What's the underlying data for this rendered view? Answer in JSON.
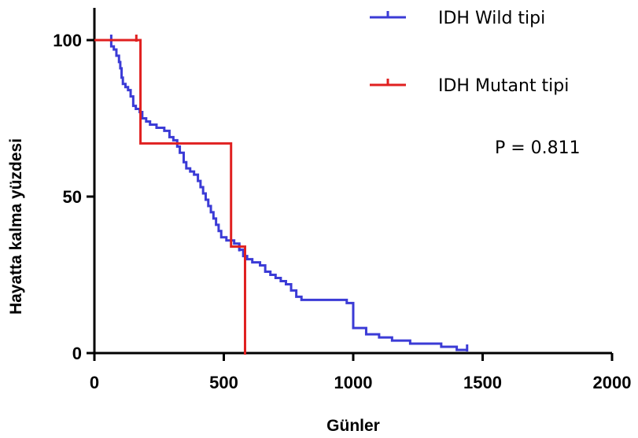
{
  "chart_data": {
    "type": "line",
    "subtype": "kaplan-meier",
    "xlabel": "Günler",
    "ylabel": "Hayatta kalma yüzdesi",
    "xlim": [
      0,
      2000
    ],
    "ylim": [
      0,
      100
    ],
    "x_ticks": [
      0,
      500,
      1000,
      1500,
      2000
    ],
    "y_ticks": [
      0,
      50,
      100
    ],
    "x_tick_labels": [
      "0",
      "500",
      "1000",
      "1500",
      "2000"
    ],
    "y_tick_labels": [
      "0",
      "50",
      "100"
    ],
    "grid": false,
    "legend_position": "top-right",
    "annotation": "P = 0.811",
    "series": [
      {
        "name": "IDH Wild tipi",
        "color": "#3b3bd6",
        "points": [
          [
            0,
            100
          ],
          [
            60,
            100
          ],
          [
            65,
            98
          ],
          [
            75,
            97
          ],
          [
            85,
            95
          ],
          [
            95,
            93
          ],
          [
            100,
            91
          ],
          [
            105,
            88
          ],
          [
            110,
            86
          ],
          [
            120,
            85
          ],
          [
            130,
            84
          ],
          [
            140,
            82
          ],
          [
            150,
            79
          ],
          [
            160,
            78
          ],
          [
            175,
            77
          ],
          [
            185,
            75
          ],
          [
            200,
            74
          ],
          [
            215,
            73
          ],
          [
            240,
            72
          ],
          [
            270,
            71
          ],
          [
            290,
            69
          ],
          [
            305,
            68
          ],
          [
            320,
            66
          ],
          [
            330,
            64
          ],
          [
            345,
            61
          ],
          [
            355,
            59
          ],
          [
            370,
            58
          ],
          [
            385,
            57
          ],
          [
            400,
            55
          ],
          [
            410,
            53
          ],
          [
            420,
            51
          ],
          [
            430,
            49
          ],
          [
            440,
            47
          ],
          [
            450,
            45
          ],
          [
            460,
            43
          ],
          [
            470,
            41
          ],
          [
            480,
            39
          ],
          [
            490,
            37
          ],
          [
            510,
            36
          ],
          [
            540,
            35
          ],
          [
            560,
            33
          ],
          [
            575,
            31
          ],
          [
            590,
            30
          ],
          [
            610,
            29
          ],
          [
            640,
            28
          ],
          [
            660,
            26
          ],
          [
            680,
            25
          ],
          [
            700,
            24
          ],
          [
            720,
            23
          ],
          [
            740,
            22
          ],
          [
            760,
            20
          ],
          [
            780,
            18
          ],
          [
            800,
            17
          ],
          [
            900,
            17
          ],
          [
            975,
            16
          ],
          [
            1000,
            8
          ],
          [
            1050,
            6
          ],
          [
            1100,
            5
          ],
          [
            1150,
            4
          ],
          [
            1220,
            3
          ],
          [
            1340,
            2
          ],
          [
            1400,
            1
          ],
          [
            1440,
            1
          ]
        ],
        "censored": [
          [
            65,
            100
          ],
          [
            560,
            33
          ],
          [
            1440,
            1
          ]
        ]
      },
      {
        "name": "IDH Mutant tipi",
        "color": "#e02020",
        "points": [
          [
            0,
            100
          ],
          [
            178,
            100
          ],
          [
            178,
            67
          ],
          [
            528,
            67
          ],
          [
            528,
            34
          ],
          [
            582,
            34
          ],
          [
            582,
            0
          ]
        ],
        "censored": [
          [
            162,
            100
          ],
          [
            582,
            0
          ]
        ]
      }
    ]
  }
}
